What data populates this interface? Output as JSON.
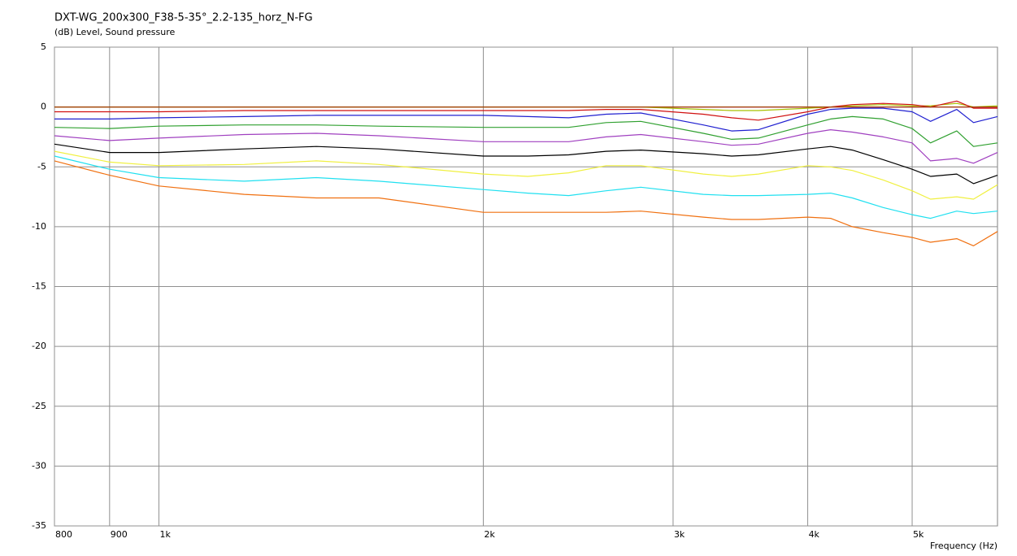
{
  "chart_data": {
    "type": "line",
    "title": "DXT-WG_200x300_F38-5-35°_2.2-135_horz_N-FG",
    "y_label": "(dB)  Level, Sound pressure",
    "x_label": "Frequency  (Hz)",
    "log_x": true,
    "grid": true,
    "xlim": [
      800,
      6000
    ],
    "ylim": [
      -35,
      5
    ],
    "xticks": [
      800,
      900,
      {
        "value": 1000,
        "label": "1k"
      },
      {
        "value": 2000,
        "label": "2k"
      },
      {
        "value": 3000,
        "label": "3k"
      },
      {
        "value": 4000,
        "label": "4k"
      },
      {
        "value": 5000,
        "label": "5k"
      }
    ],
    "yticks": [
      5,
      0,
      -5,
      -10,
      -15,
      -20,
      -25,
      -30,
      -35
    ],
    "x": [
      800,
      900,
      1000,
      1200,
      1400,
      1600,
      2000,
      2200,
      2400,
      2600,
      2800,
      3200,
      3400,
      3600,
      4000,
      4200,
      4400,
      4700,
      5000,
      5200,
      5500,
      5700,
      6000
    ],
    "series": [
      {
        "color": "#e000e0",
        "values": [
          0,
          0,
          0,
          0,
          0,
          0,
          0,
          0,
          0,
          0,
          0,
          0,
          0,
          0,
          0,
          0,
          0,
          0,
          0,
          0,
          0,
          0,
          0
        ]
      },
      {
        "color": "#a8c000",
        "values": [
          0,
          0,
          0,
          0,
          0,
          0,
          0,
          0,
          0,
          0,
          0,
          -0.2,
          -0.3,
          -0.3,
          -0.1,
          0,
          0.1,
          0.2,
          0.1,
          0.1,
          0.3,
          0,
          0.1
        ]
      },
      {
        "color": "#d01010",
        "values": [
          -0.4,
          -0.4,
          -0.4,
          -0.3,
          -0.3,
          -0.3,
          -0.3,
          -0.3,
          -0.3,
          -0.2,
          -0.2,
          -0.6,
          -0.9,
          -1.1,
          -0.4,
          0,
          0.2,
          0.3,
          0.2,
          0,
          0.5,
          -0.1,
          -0.1
        ]
      },
      {
        "color": "#a04000",
        "values": [
          0,
          0,
          0,
          0,
          0,
          0,
          0,
          0,
          0,
          0,
          0,
          0,
          0,
          0,
          0,
          0,
          0,
          0,
          0,
          0,
          0,
          0,
          0
        ]
      },
      {
        "color": "#2020d0",
        "values": [
          -1.0,
          -1.0,
          -0.9,
          -0.8,
          -0.7,
          -0.7,
          -0.7,
          -0.8,
          -0.9,
          -0.6,
          -0.5,
          -1.5,
          -2.0,
          -1.9,
          -0.6,
          -0.2,
          -0.1,
          -0.1,
          -0.4,
          -1.2,
          -0.2,
          -1.3,
          -0.8
        ]
      },
      {
        "color": "#30a030",
        "values": [
          -1.7,
          -1.8,
          -1.6,
          -1.5,
          -1.5,
          -1.6,
          -1.7,
          -1.7,
          -1.7,
          -1.3,
          -1.2,
          -2.2,
          -2.7,
          -2.6,
          -1.5,
          -1.0,
          -0.8,
          -1.0,
          -1.8,
          -3.0,
          -2.0,
          -3.3,
          -3.0
        ]
      },
      {
        "color": "#a040c0",
        "values": [
          -2.4,
          -2.8,
          -2.6,
          -2.3,
          -2.2,
          -2.4,
          -2.9,
          -2.9,
          -2.9,
          -2.5,
          -2.3,
          -2.9,
          -3.2,
          -3.1,
          -2.2,
          -1.9,
          -2.1,
          -2.5,
          -3.0,
          -4.5,
          -4.3,
          -4.7,
          -3.8
        ]
      },
      {
        "color": "#000000",
        "values": [
          -3.1,
          -3.8,
          -3.8,
          -3.5,
          -3.3,
          -3.5,
          -4.1,
          -4.1,
          -4.0,
          -3.7,
          -3.6,
          -3.9,
          -4.1,
          -4.0,
          -3.5,
          -3.3,
          -3.6,
          -4.4,
          -5.2,
          -5.8,
          -5.6,
          -6.4,
          -5.7
        ]
      },
      {
        "color": "#f0f040",
        "values": [
          -3.7,
          -4.6,
          -4.9,
          -4.8,
          -4.5,
          -4.8,
          -5.6,
          -5.8,
          -5.5,
          -4.9,
          -4.9,
          -5.6,
          -5.8,
          -5.6,
          -4.9,
          -5.0,
          -5.3,
          -6.1,
          -7.0,
          -7.7,
          -7.5,
          -7.7,
          -6.5
        ]
      },
      {
        "color": "#20e0f0",
        "values": [
          -4.1,
          -5.2,
          -5.9,
          -6.2,
          -5.9,
          -6.2,
          -6.9,
          -7.2,
          -7.4,
          -7.0,
          -6.7,
          -7.3,
          -7.4,
          -7.4,
          -7.3,
          -7.2,
          -7.6,
          -8.4,
          -9.0,
          -9.3,
          -8.7,
          -8.9,
          -8.7
        ]
      },
      {
        "color": "#f07010",
        "values": [
          -4.5,
          -5.7,
          -6.6,
          -7.3,
          -7.6,
          -7.6,
          -8.8,
          -8.8,
          -8.8,
          -8.8,
          -8.7,
          -9.2,
          -9.4,
          -9.4,
          -9.2,
          -9.3,
          -10.0,
          -10.5,
          -10.9,
          -11.3,
          -11.0,
          -11.6,
          -10.4
        ]
      }
    ]
  }
}
